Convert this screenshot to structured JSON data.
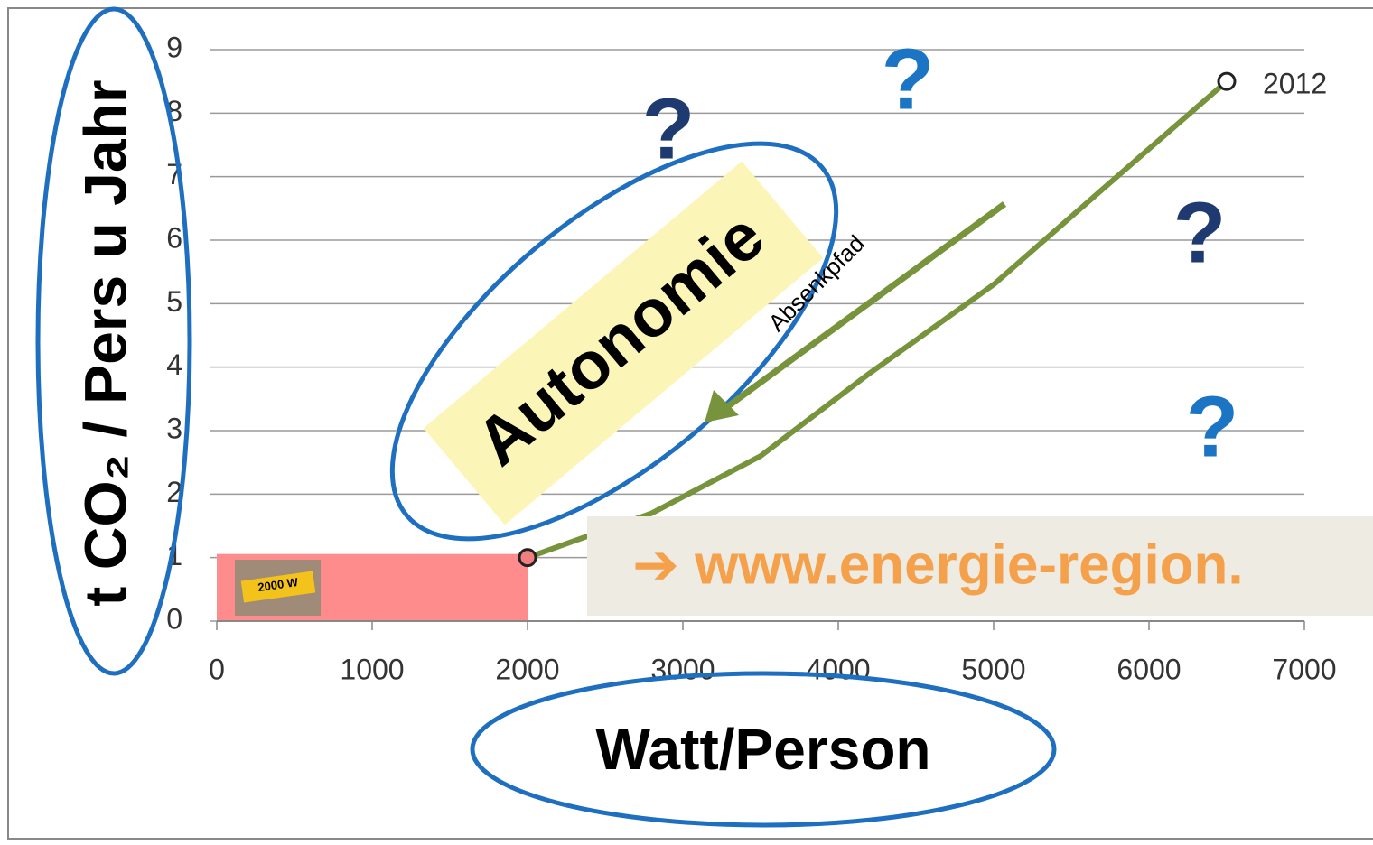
{
  "chart_data": {
    "type": "line",
    "y_label": "t CO₂ / Pers u Jahr",
    "x_label": "Watt/Person",
    "x": [
      2000,
      2800,
      3500,
      4200,
      5000,
      5700,
      6500
    ],
    "series": [
      {
        "color": "#77933c",
        "values": [
          1,
          1.7,
          2.6,
          3.9,
          5.3,
          6.8,
          8.5
        ]
      }
    ],
    "point_label": "2012",
    "xlim": [
      0,
      7000
    ],
    "xticks": [
      0,
      1000,
      2000,
      3000,
      4000,
      5000,
      6000,
      7000
    ],
    "ylim": [
      0,
      9
    ],
    "yticks": [
      0,
      1,
      2,
      3,
      4,
      5,
      6,
      7,
      8,
      9
    ],
    "grid": true,
    "target_region": {
      "x": [
        0,
        2000
      ],
      "y": [
        0,
        1
      ],
      "color": "#ff8c8c",
      "label": "2000 W"
    },
    "annotations": {
      "autonomie": "Autonomie",
      "path": "Absenkpfad",
      "q1": "?",
      "q2": "?",
      "q3": "?",
      "q4": "?",
      "link": "➔ www.energie-region."
    }
  }
}
